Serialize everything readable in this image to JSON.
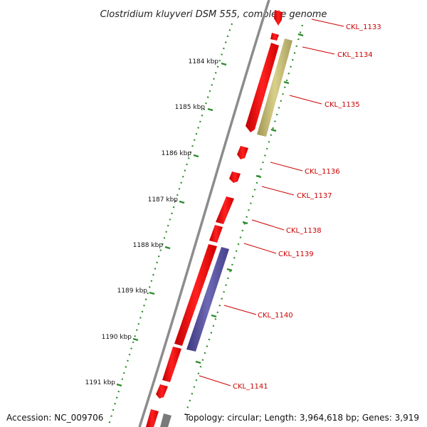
{
  "title": "Clostridium kluyveri DSM 555, complete genome",
  "accession": "Accession: NC_009706",
  "stats": "Topology: circular; Length: 3,964,618 bp; Genes: 3,919",
  "kbp_labels": [
    "1184 kbp",
    "1185 kbp",
    "1186 kbp",
    "1187 kbp",
    "1188 kbp",
    "1189 kbp",
    "1190 kbp",
    "1191 kbp"
  ],
  "gene_labels": [
    "CKL_1133",
    "CKL_1134",
    "CKL_1135",
    "CKL_1136",
    "CKL_1137",
    "CKL_1138",
    "CKL_1139",
    "CKL_1140",
    "CKL_1141"
  ],
  "colors": {
    "backbone": "#8c8c8c",
    "gene": "#ff0000",
    "tick": "#2e8b2e",
    "label": "#cc0000",
    "feature_tan": "#c8c07a",
    "feature_blue": "#5a55a0"
  }
}
